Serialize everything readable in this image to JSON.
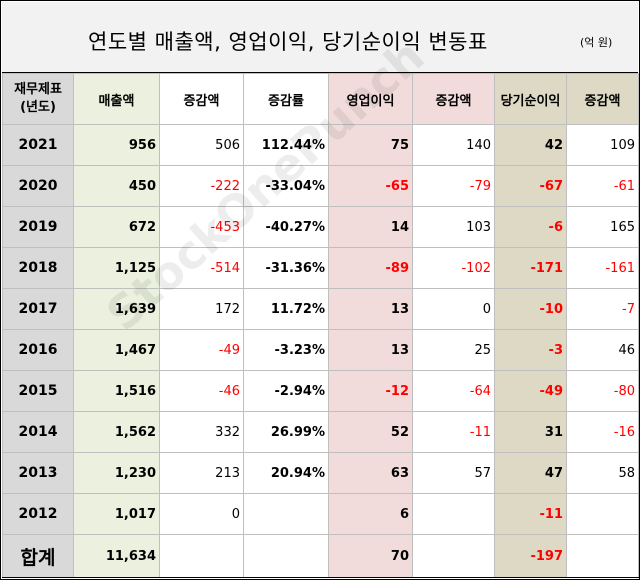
{
  "title": "연도별 매출액, 영업이익, 당기순이익 변동표",
  "unit": "(억 원)",
  "watermark": "StockOnePunch",
  "headers": {
    "first_line1": "재무제표",
    "first_line2": "(년도)",
    "revenue": "매출액",
    "rev_change": "증감액",
    "rev_rate": "증감률",
    "op_income": "영업이익",
    "op_change": "증감액",
    "net_income": "당기순이익",
    "net_change": "증감액"
  },
  "rows": [
    {
      "year": "2021",
      "revenue": "956",
      "rev_change": "506",
      "rev_rate": "112.44%",
      "op_income": "75",
      "op_change": "140",
      "net_income": "42",
      "net_change": "109"
    },
    {
      "year": "2020",
      "revenue": "450",
      "rev_change": "-222",
      "rev_rate": "-33.04%",
      "op_income": "-65",
      "op_change": "-79",
      "net_income": "-67",
      "net_change": "-61"
    },
    {
      "year": "2019",
      "revenue": "672",
      "rev_change": "-453",
      "rev_rate": "-40.27%",
      "op_income": "14",
      "op_change": "103",
      "net_income": "-6",
      "net_change": "165"
    },
    {
      "year": "2018",
      "revenue": "1,125",
      "rev_change": "-514",
      "rev_rate": "-31.36%",
      "op_income": "-89",
      "op_change": "-102",
      "net_income": "-171",
      "net_change": "-161"
    },
    {
      "year": "2017",
      "revenue": "1,639",
      "rev_change": "172",
      "rev_rate": "11.72%",
      "op_income": "13",
      "op_change": "0",
      "net_income": "-10",
      "net_change": "-7"
    },
    {
      "year": "2016",
      "revenue": "1,467",
      "rev_change": "-49",
      "rev_rate": "-3.23%",
      "op_income": "13",
      "op_change": "25",
      "net_income": "-3",
      "net_change": "46"
    },
    {
      "year": "2015",
      "revenue": "1,516",
      "rev_change": "-46",
      "rev_rate": "-2.94%",
      "op_income": "-12",
      "op_change": "-64",
      "net_income": "-49",
      "net_change": "-80"
    },
    {
      "year": "2014",
      "revenue": "1,562",
      "rev_change": "332",
      "rev_rate": "26.99%",
      "op_income": "52",
      "op_change": "-11",
      "net_income": "31",
      "net_change": "-16"
    },
    {
      "year": "2013",
      "revenue": "1,230",
      "rev_change": "213",
      "rev_rate": "20.94%",
      "op_income": "63",
      "op_change": "57",
      "net_income": "47",
      "net_change": "58"
    },
    {
      "year": "2012",
      "revenue": "1,017",
      "rev_change": "0",
      "rev_rate": "",
      "op_income": "6",
      "op_change": "",
      "net_income": "-11",
      "net_change": ""
    }
  ],
  "total": {
    "label": "합계",
    "revenue": "11,634",
    "op_income": "70",
    "net_income": "-197"
  }
}
